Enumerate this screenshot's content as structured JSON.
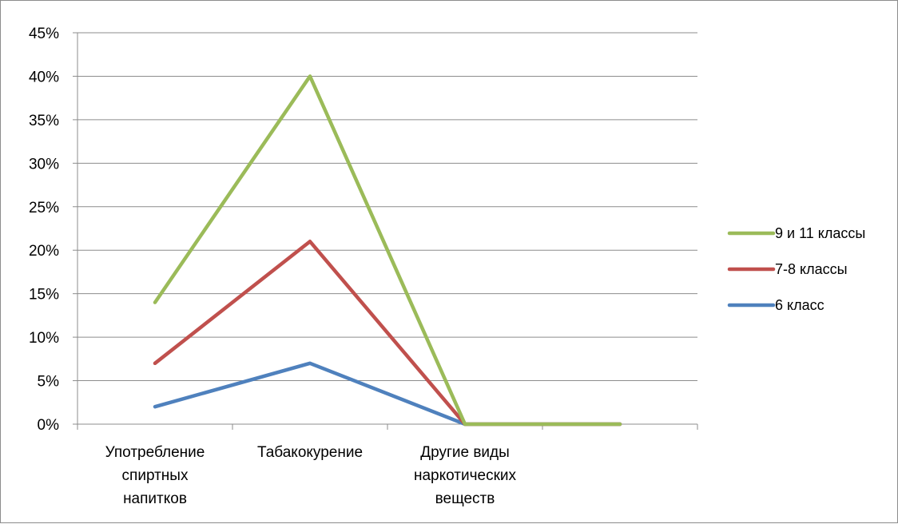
{
  "chart_data": {
    "type": "line",
    "title": "",
    "xlabel": "",
    "ylabel": "",
    "categories": [
      [
        "Употребление",
        "спиртных",
        "напитков"
      ],
      [
        "Табакокурение"
      ],
      [
        "Другие виды",
        "наркотических",
        "веществ"
      ],
      [
        ""
      ]
    ],
    "y_tick_labels": [
      "0%",
      "5%",
      "10%",
      "15%",
      "20%",
      "25%",
      "30%",
      "35%",
      "40%",
      "45%"
    ],
    "ylim": [
      0,
      45
    ],
    "grid": true,
    "legend_position": "right",
    "series": [
      {
        "name": "9 и 11 классы",
        "color": "#9bbb59",
        "values": [
          14,
          40,
          0,
          0
        ]
      },
      {
        "name": "7-8 классы",
        "color": "#c0504d",
        "values": [
          7,
          21,
          0,
          0
        ]
      },
      {
        "name": "6 класс",
        "color": "#4f81bd",
        "values": [
          2,
          7,
          0,
          0
        ]
      }
    ]
  }
}
